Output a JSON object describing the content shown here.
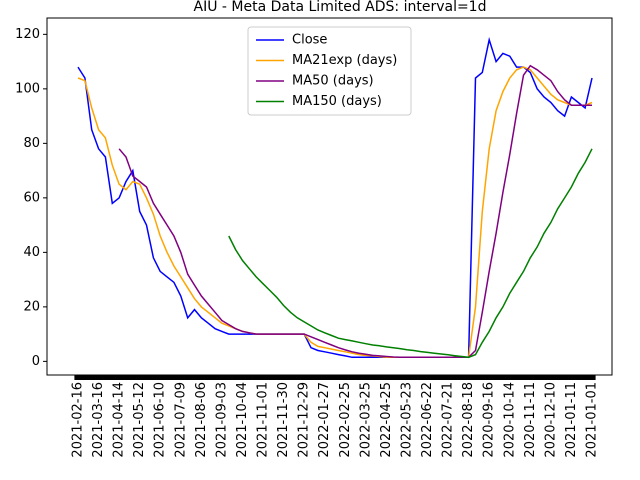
{
  "chart_data": {
    "type": "line",
    "title": "AIU - Meta Data Limited ADS: interval=1d",
    "categories": [
      "2021-02-16",
      null,
      null,
      "2021-03-16",
      null,
      null,
      "2021-04-14",
      null,
      null,
      "2021-05-12",
      null,
      null,
      "2021-06-10",
      null,
      null,
      "2021-07-09",
      null,
      null,
      "2021-08-06",
      null,
      null,
      "2021-09-03",
      null,
      null,
      "2021-10-04",
      null,
      null,
      "2021-11-01",
      null,
      null,
      "2021-11-30",
      null,
      null,
      "2021-12-29",
      null,
      null,
      "2022-01-27",
      null,
      null,
      "2022-02-25",
      null,
      null,
      "2022-03-25",
      null,
      null,
      "2022-04-25",
      null,
      null,
      "2022-05-23",
      null,
      null,
      "2022-06-22",
      null,
      null,
      "2022-07-21",
      null,
      null,
      "2022-08-18",
      null,
      null,
      "2020-09-16",
      null,
      null,
      "2020-10-14",
      null,
      null,
      "2020-11-11",
      null,
      null,
      "2020-12-10",
      null,
      null,
      "2021-01-11",
      null,
      null,
      "2021-01-01"
    ],
    "series": [
      {
        "name": "Close",
        "color": "#0000ff",
        "values": [
          108,
          104,
          85,
          78,
          75,
          58,
          60,
          66,
          70,
          55,
          50,
          38,
          33,
          31,
          29,
          24,
          16,
          19,
          16,
          14,
          12,
          11,
          10,
          10,
          10,
          10,
          10,
          10,
          10,
          10,
          10,
          10,
          10,
          10,
          5,
          4,
          3.5,
          3,
          2.5,
          2,
          1.5,
          1.5,
          1.5,
          1.5,
          1.5,
          1.5,
          1.5,
          1.5,
          1.5,
          1.5,
          1.5,
          1.5,
          1.5,
          1.5,
          1.5,
          1.5,
          1.5,
          1.5,
          104,
          106,
          118,
          110,
          113,
          112,
          108,
          108,
          106,
          100,
          97,
          95,
          92,
          90,
          97,
          95,
          93,
          104
        ]
      },
      {
        "name": "MA21exp (days)",
        "color": "#ffa500",
        "values": [
          104,
          103,
          93,
          85,
          82,
          72,
          65,
          63,
          66,
          65,
          60,
          54,
          46,
          40,
          35,
          31,
          27,
          23,
          20,
          18,
          16,
          14,
          13,
          12,
          11,
          10.5,
          10,
          10,
          10,
          10,
          10,
          10,
          10,
          10,
          7,
          5.5,
          5,
          4.5,
          4,
          3.5,
          3,
          2.5,
          2.2,
          2,
          1.8,
          1.5,
          1.5,
          1.5,
          1.5,
          1.5,
          1.5,
          1.5,
          1.5,
          1.5,
          1.5,
          1.5,
          1.5,
          1.5,
          20,
          55,
          78,
          92,
          99,
          104,
          107,
          108,
          107,
          104,
          101,
          98,
          96,
          95,
          94,
          94,
          94,
          95
        ]
      },
      {
        "name": "MA50 (days)",
        "color": "#800080",
        "values": [
          null,
          null,
          null,
          null,
          null,
          null,
          78,
          75,
          68,
          66,
          64,
          58,
          54,
          50,
          46,
          40,
          32,
          28,
          24,
          21,
          18,
          15,
          13.5,
          12,
          11,
          10.5,
          10,
          10,
          10,
          10,
          10,
          10,
          10,
          10,
          9,
          8,
          7,
          6,
          5,
          4.2,
          3.5,
          3,
          2.6,
          2.2,
          2,
          1.8,
          1.6,
          1.5,
          1.5,
          1.5,
          1.5,
          1.5,
          1.5,
          1.5,
          1.5,
          1.5,
          1.5,
          1.5,
          4,
          18,
          33,
          47,
          62,
          76,
          91,
          105,
          108.5,
          107,
          105,
          103,
          99,
          96,
          94,
          94,
          94,
          94
        ]
      },
      {
        "name": "MA150 (days)",
        "color": "#008000",
        "values": [
          null,
          null,
          null,
          null,
          null,
          null,
          null,
          null,
          null,
          null,
          null,
          null,
          null,
          null,
          null,
          null,
          null,
          null,
          null,
          null,
          null,
          null,
          46,
          41,
          37,
          34,
          31,
          28.5,
          26,
          23.5,
          20.5,
          18,
          16,
          14.5,
          13,
          11.5,
          10.5,
          9.5,
          8.5,
          8,
          7.5,
          7,
          6.5,
          6,
          5.7,
          5.3,
          5,
          4.7,
          4.3,
          4,
          3.6,
          3.3,
          3,
          2.7,
          2.4,
          2.1,
          1.8,
          1.5,
          2.5,
          7,
          11,
          16,
          20,
          25,
          29,
          33,
          38,
          42,
          47,
          51,
          56,
          60,
          64,
          69,
          73,
          78
        ]
      }
    ],
    "ylim": [
      -5,
      126
    ],
    "yticks": [
      0,
      20,
      40,
      60,
      80,
      100,
      120
    ],
    "legend": "upper center"
  }
}
